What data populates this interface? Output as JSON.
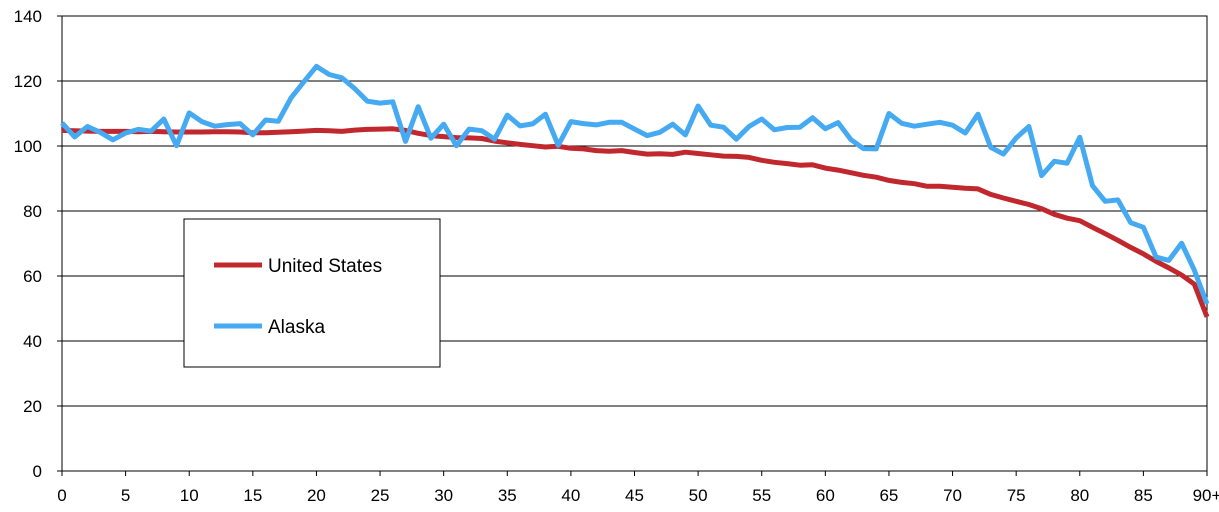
{
  "chart_data": {
    "type": "line",
    "title": "",
    "xlabel": "",
    "ylabel": "",
    "ylim": [
      0,
      140
    ],
    "yticks": [
      0,
      20,
      40,
      60,
      80,
      100,
      120,
      140
    ],
    "xtick_labels": [
      "0",
      "5",
      "10",
      "15",
      "20",
      "25",
      "30",
      "35",
      "40",
      "45",
      "50",
      "55",
      "60",
      "65",
      "70",
      "75",
      "80",
      "85",
      "90+"
    ],
    "grid": true,
    "legend_position": "left-middle",
    "x": [
      0,
      1,
      2,
      3,
      4,
      5,
      6,
      7,
      8,
      9,
      10,
      11,
      12,
      13,
      14,
      15,
      16,
      17,
      18,
      19,
      20,
      21,
      22,
      23,
      24,
      25,
      26,
      27,
      28,
      29,
      30,
      31,
      32,
      33,
      34,
      35,
      36,
      37,
      38,
      39,
      40,
      41,
      42,
      43,
      44,
      45,
      46,
      47,
      48,
      49,
      50,
      51,
      52,
      53,
      54,
      55,
      56,
      57,
      58,
      59,
      60,
      61,
      62,
      63,
      64,
      65,
      66,
      67,
      68,
      69,
      70,
      71,
      72,
      73,
      74,
      75,
      76,
      77,
      78,
      79,
      80,
      81,
      82,
      83,
      84,
      85,
      86,
      87,
      88,
      89,
      90
    ],
    "series": [
      {
        "name": "United States",
        "color": "#c0282d",
        "values": [
          104.8,
          104.7,
          104.6,
          104.5,
          104.5,
          104.5,
          104.4,
          104.5,
          104.4,
          104.3,
          104.3,
          104.3,
          104.4,
          104.4,
          104.3,
          104.1,
          104.1,
          104.2,
          104.4,
          104.6,
          104.8,
          104.7,
          104.5,
          104.9,
          105.1,
          105.2,
          105.3,
          104.8,
          103.9,
          103.2,
          102.9,
          102.6,
          102.5,
          102.3,
          101.5,
          101.0,
          100.5,
          100.1,
          99.7,
          99.9,
          99.3,
          99.1,
          98.6,
          98.4,
          98.6,
          98.0,
          97.5,
          97.6,
          97.4,
          98.1,
          97.7,
          97.3,
          96.9,
          96.8,
          96.5,
          95.6,
          95.0,
          94.6,
          94.1,
          94.2,
          93.2,
          92.6,
          91.8,
          91.0,
          90.4,
          89.4,
          88.8,
          88.4,
          87.6,
          87.6,
          87.3,
          87.0,
          86.8,
          85.1,
          84.0,
          83.0,
          82.0,
          80.7,
          79.0,
          77.8,
          77.0,
          75.0,
          73.0,
          71.0,
          68.8,
          66.8,
          64.5,
          62.5,
          60.3,
          57.5,
          47.4
        ]
      },
      {
        "name": "Alaska",
        "color": "#45aaf2",
        "values": [
          107.1,
          102.8,
          106.0,
          104.2,
          101.9,
          104.0,
          105.1,
          104.6,
          108.3,
          100.1,
          110.2,
          107.5,
          106.1,
          106.6,
          106.9,
          103.4,
          108.0,
          107.6,
          114.8,
          119.7,
          124.5,
          122.0,
          121.0,
          117.7,
          113.8,
          113.2,
          113.6,
          101.4,
          112.1,
          102.4,
          106.7,
          100.1,
          105.2,
          104.7,
          102.1,
          109.5,
          106.2,
          106.8,
          109.8,
          100.2,
          107.5,
          106.9,
          106.5,
          107.3,
          107.3,
          105.2,
          103.2,
          104.2,
          106.7,
          103.4,
          112.3,
          106.4,
          105.8,
          102.1,
          106.0,
          108.3,
          105.0,
          105.7,
          105.8,
          108.7,
          105.3,
          107.2,
          102.0,
          99.2,
          99.1,
          110.0,
          107.0,
          106.1,
          106.7,
          107.3,
          106.4,
          104.0,
          109.8,
          99.6,
          97.5,
          102.5,
          106.0,
          90.9,
          95.3,
          94.7,
          102.7,
          87.8,
          83.0,
          83.4,
          76.4,
          75.0,
          65.8,
          64.8,
          70.1,
          61.8,
          51.4
        ]
      }
    ]
  }
}
